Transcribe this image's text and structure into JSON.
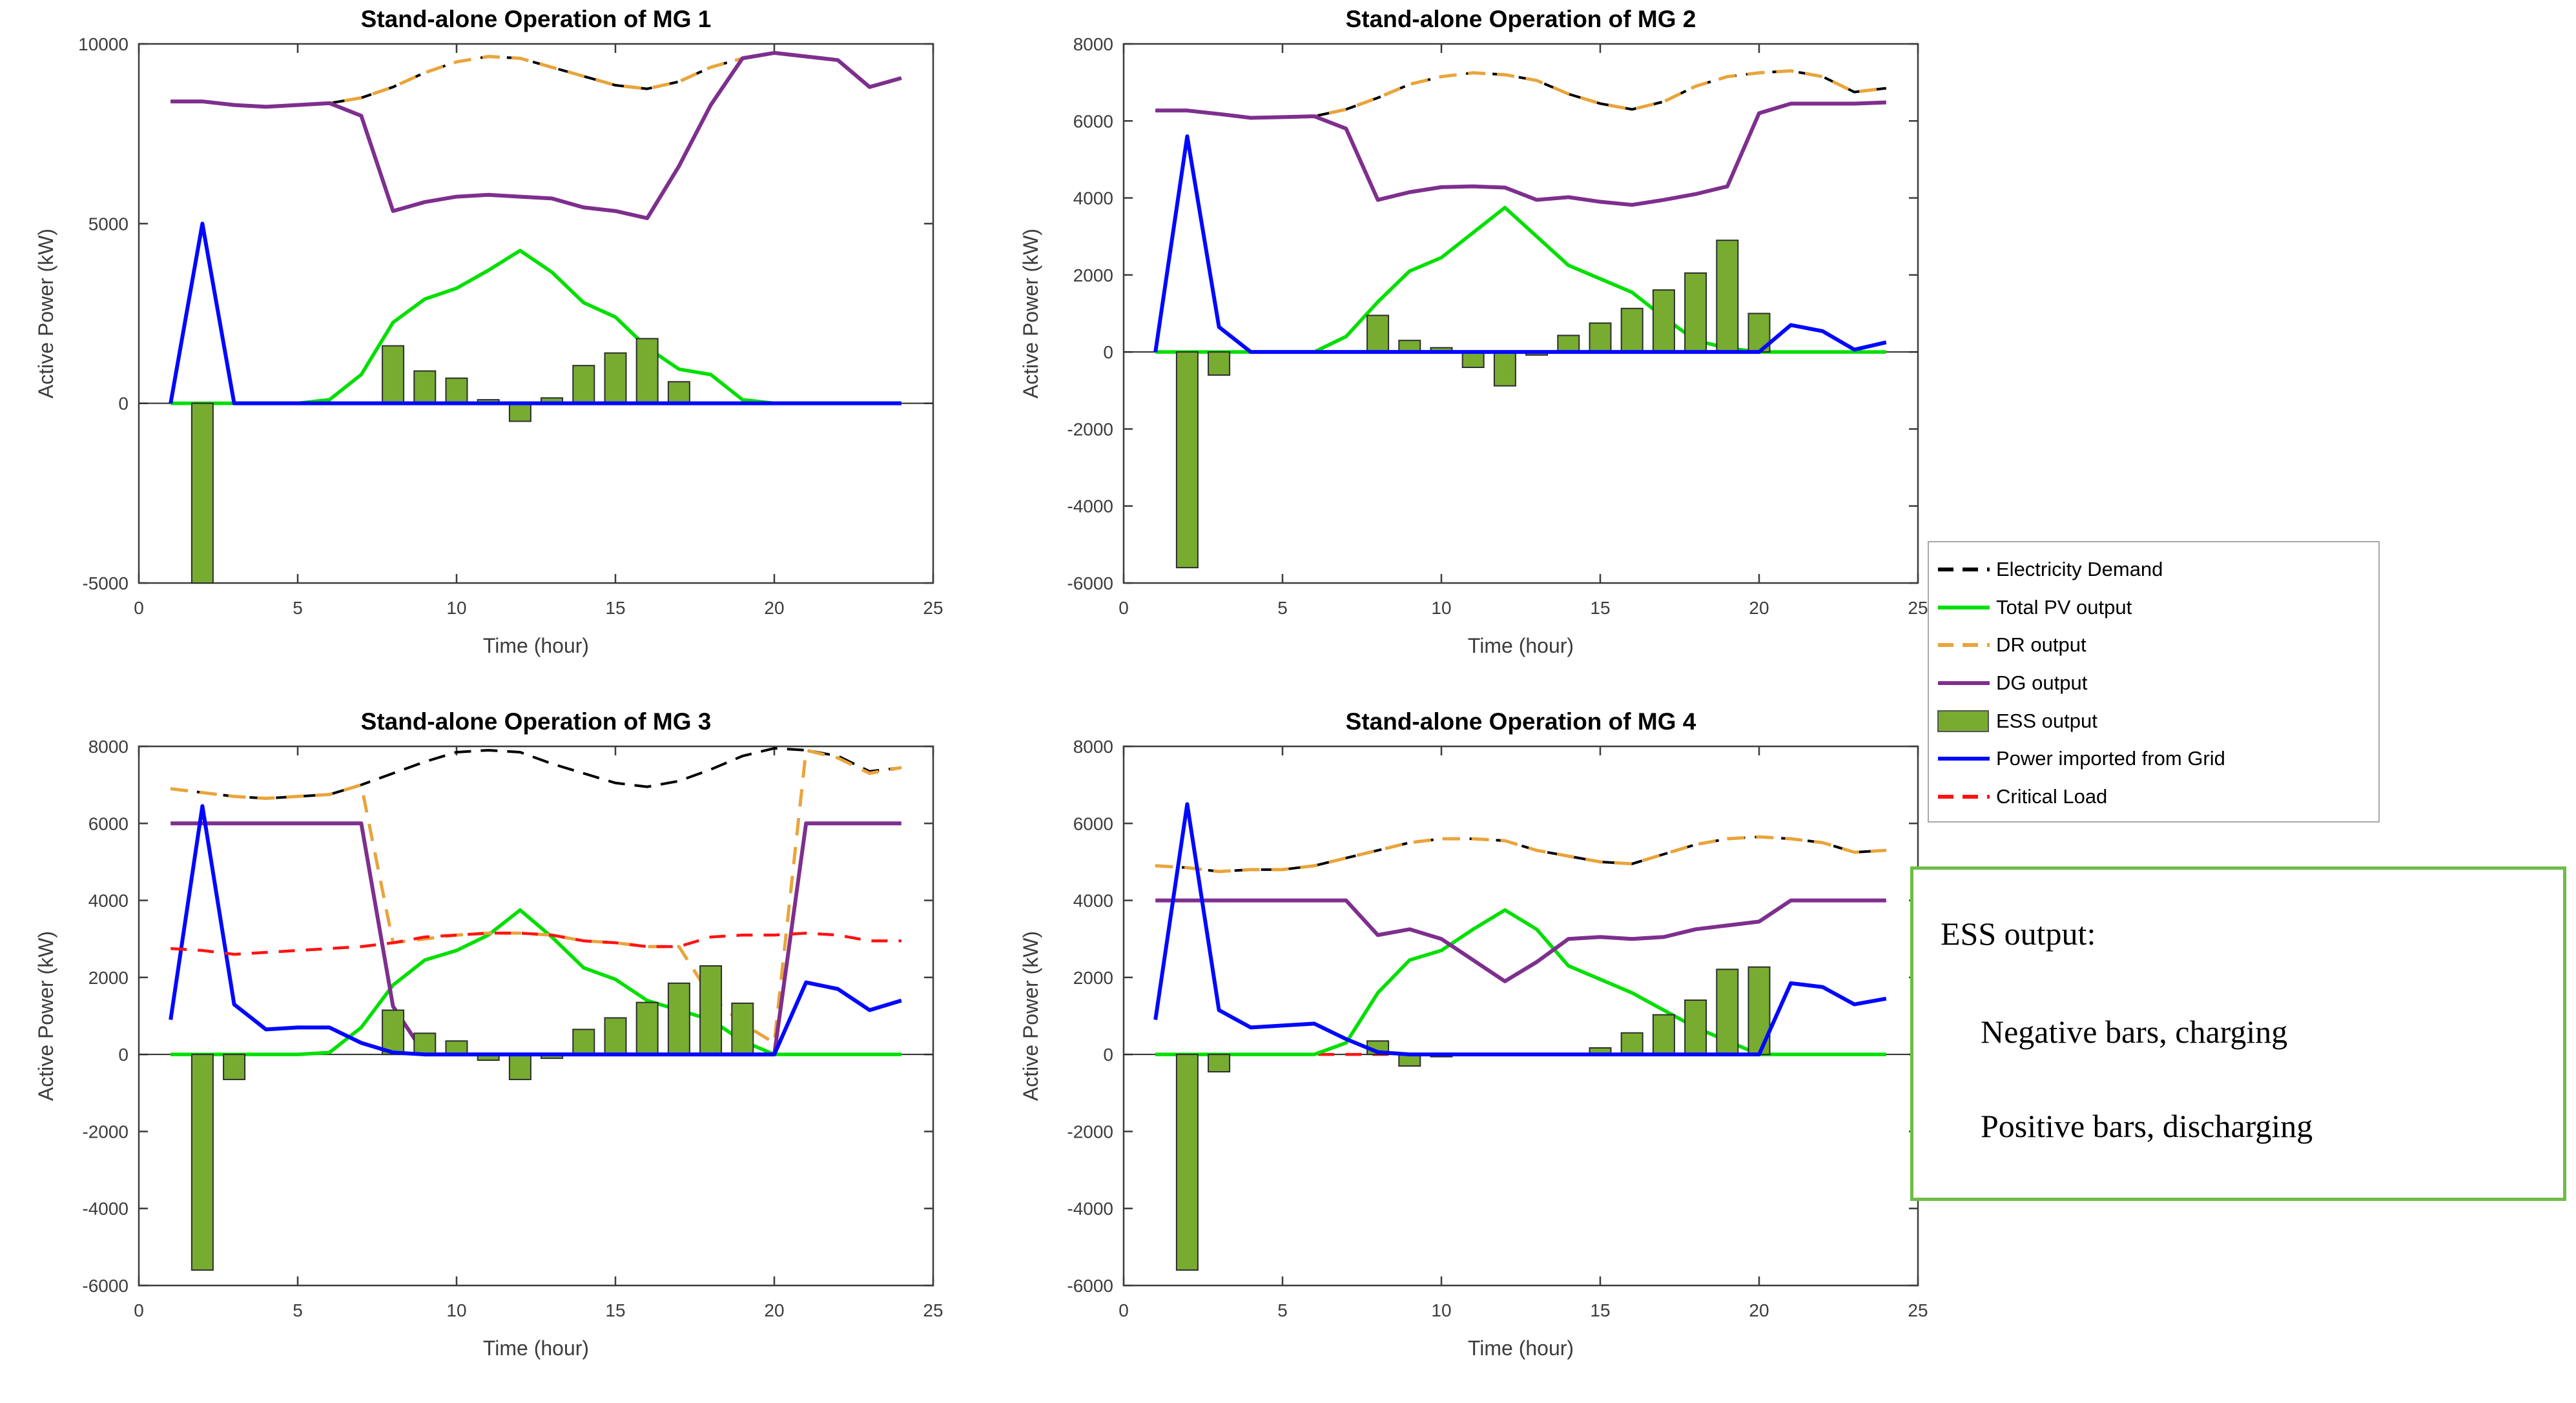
{
  "figure": {
    "background": "#ffffff",
    "axis_color": "#3c3c3c"
  },
  "legend": {
    "items": [
      {
        "label": "Electricity Demand",
        "style": "dash",
        "color": "#000000"
      },
      {
        "label": "Total PV output",
        "style": "solid",
        "color": "#00DF00"
      },
      {
        "label": "DR output",
        "style": "dash",
        "color": "#E9A43B"
      },
      {
        "label": "DG output",
        "style": "solid",
        "color": "#7E2F8E"
      },
      {
        "label": "ESS output",
        "style": "bar",
        "color": "#77AC30"
      },
      {
        "label": "Power imported from Grid",
        "style": "solid",
        "color": "#0008FF"
      },
      {
        "label": "Critical Load",
        "style": "dash",
        "color": "#FF1212"
      }
    ]
  },
  "note_box": {
    "title": "ESS output:",
    "line1": "Negative bars, charging",
    "line2": "Positive bars, discharging",
    "border_color": "#6DBE45"
  },
  "chart_data": [
    {
      "type": "combo-line-bar",
      "title": "Stand-alone Operation of MG 1",
      "xlabel": "Time (hour)",
      "ylabel": "Active Power (kW)",
      "xlim": [
        0,
        25
      ],
      "ylim": [
        -5000,
        10000
      ],
      "xticks": [
        0,
        5,
        10,
        15,
        20,
        25
      ],
      "yticks": [
        -5000,
        0,
        5000,
        10000
      ],
      "grid": false,
      "hours": [
        1,
        2,
        3,
        4,
        5,
        6,
        7,
        8,
        9,
        10,
        11,
        12,
        13,
        14,
        15,
        16,
        17,
        18,
        19,
        20,
        21,
        22,
        23,
        24
      ],
      "series": {
        "demand": [
          8400,
          8400,
          8300,
          8250,
          8300,
          8350,
          8500,
          8800,
          9200,
          9500,
          9650,
          9600,
          9350,
          9100,
          8850,
          8750,
          8950,
          9350,
          9600,
          9750,
          9650,
          9550,
          8800,
          9050
        ],
        "pv": [
          0,
          0,
          0,
          0,
          0,
          100,
          800,
          2250,
          2900,
          3200,
          3700,
          4250,
          3650,
          2800,
          2400,
          1550,
          950,
          800,
          100,
          0,
          0,
          0,
          0,
          0
        ],
        "dr": [
          8400,
          8400,
          8300,
          8250,
          8300,
          8350,
          8500,
          8800,
          9200,
          9500,
          9650,
          9600,
          9350,
          9100,
          8850,
          8750,
          8950,
          9350,
          9600,
          9750,
          9650,
          9550,
          8800,
          9050
        ],
        "dg": [
          8400,
          8400,
          8300,
          8250,
          8300,
          8350,
          8000,
          5350,
          5600,
          5750,
          5800,
          5750,
          5700,
          5450,
          5350,
          5150,
          6600,
          8300,
          9600,
          9750,
          9650,
          9550,
          8800,
          9050
        ],
        "ess": [
          0,
          -5000,
          0,
          0,
          0,
          0,
          0,
          1600,
          900,
          700,
          100,
          -500,
          150,
          1050,
          1400,
          1800,
          600,
          0,
          0,
          0,
          0,
          0,
          0,
          0
        ],
        "grid": [
          0,
          5000,
          0,
          0,
          0,
          0,
          0,
          0,
          0,
          0,
          0,
          0,
          0,
          0,
          0,
          0,
          0,
          0,
          0,
          0,
          0,
          0,
          0,
          0
        ],
        "critical": [
          0,
          0,
          0,
          0,
          0,
          0,
          0,
          0,
          0,
          0,
          0,
          0,
          0,
          0,
          0,
          0,
          0,
          0,
          0,
          0,
          0,
          0,
          0,
          0
        ]
      }
    },
    {
      "type": "combo-line-bar",
      "title": "Stand-alone Operation of MG 2",
      "xlabel": "Time (hour)",
      "ylabel": "Active Power (kW)",
      "xlim": [
        0,
        25
      ],
      "ylim": [
        -6000,
        8000
      ],
      "xticks": [
        0,
        5,
        10,
        15,
        20,
        25
      ],
      "yticks": [
        -6000,
        -4000,
        -2000,
        0,
        2000,
        4000,
        6000,
        8000
      ],
      "grid": false,
      "hours": [
        1,
        2,
        3,
        4,
        5,
        6,
        7,
        8,
        9,
        10,
        11,
        12,
        13,
        14,
        15,
        16,
        17,
        18,
        19,
        20,
        21,
        22,
        23,
        24
      ],
      "series": {
        "demand": [
          6270,
          6270,
          6180,
          6080,
          6100,
          6120,
          6300,
          6600,
          6950,
          7150,
          7250,
          7200,
          7050,
          6700,
          6450,
          6300,
          6500,
          6900,
          7150,
          7250,
          7300,
          7150,
          6750,
          6850
        ],
        "pv": [
          0,
          0,
          0,
          0,
          0,
          0,
          400,
          1300,
          2100,
          2450,
          3100,
          3750,
          3000,
          2250,
          1900,
          1550,
          900,
          300,
          100,
          0,
          0,
          0,
          0,
          0
        ],
        "dr": [
          6270,
          6270,
          6180,
          6080,
          6100,
          6120,
          6300,
          6600,
          6950,
          7150,
          7250,
          7200,
          7050,
          6700,
          6450,
          6300,
          6500,
          6900,
          7150,
          7250,
          7300,
          7150,
          6750,
          6850
        ],
        "dg": [
          6270,
          6270,
          6180,
          6080,
          6100,
          6120,
          5800,
          3950,
          4150,
          4280,
          4300,
          4270,
          3950,
          4020,
          3900,
          3820,
          3950,
          4100,
          4300,
          6200,
          6450,
          6450,
          6450,
          6480
        ],
        "ess": [
          0,
          -5600,
          -600,
          0,
          0,
          0,
          0,
          950,
          300,
          110,
          -400,
          -880,
          -80,
          430,
          750,
          1130,
          1610,
          2050,
          2900,
          1000,
          0,
          0,
          0,
          0
        ],
        "grid": [
          0,
          5600,
          650,
          0,
          0,
          0,
          0,
          0,
          0,
          0,
          0,
          0,
          0,
          0,
          0,
          0,
          0,
          0,
          0,
          0,
          700,
          540,
          60,
          250
        ],
        "critical": [
          0,
          0,
          0,
          0,
          0,
          0,
          0,
          0,
          0,
          0,
          0,
          0,
          0,
          0,
          0,
          0,
          0,
          0,
          0,
          0,
          0,
          0,
          0,
          0
        ]
      }
    },
    {
      "type": "combo-line-bar",
      "title": "Stand-alone Operation of MG 3",
      "xlabel": "Time (hour)",
      "ylabel": "Active Power (kW)",
      "xlim": [
        0,
        25
      ],
      "ylim": [
        -6000,
        8000
      ],
      "xticks": [
        0,
        5,
        10,
        15,
        20,
        25
      ],
      "yticks": [
        -6000,
        -4000,
        -2000,
        0,
        2000,
        4000,
        6000,
        8000
      ],
      "grid": false,
      "hours": [
        1,
        2,
        3,
        4,
        5,
        6,
        7,
        8,
        9,
        10,
        11,
        12,
        13,
        14,
        15,
        16,
        17,
        18,
        19,
        20,
        21,
        22,
        23,
        24
      ],
      "series": {
        "demand": [
          6900,
          6800,
          6700,
          6650,
          6700,
          6750,
          7000,
          7300,
          7600,
          7850,
          7900,
          7850,
          7550,
          7300,
          7050,
          6950,
          7100,
          7400,
          7750,
          7950,
          7900,
          7750,
          7350,
          7450
        ],
        "pv": [
          0,
          0,
          0,
          0,
          0,
          50,
          700,
          1800,
          2450,
          2700,
          3100,
          3750,
          3050,
          2250,
          1950,
          1400,
          1150,
          900,
          350,
          0,
          0,
          0,
          0,
          0
        ],
        "dr": [
          6900,
          6800,
          6700,
          6650,
          6700,
          6750,
          7000,
          2900,
          3000,
          3100,
          3150,
          3150,
          3100,
          2950,
          2900,
          2800,
          2800,
          1500,
          800,
          300,
          7900,
          7700,
          7300,
          7450
        ],
        "dg": [
          6000,
          6000,
          6000,
          6000,
          6000,
          6000,
          6000,
          1250,
          0,
          0,
          0,
          0,
          0,
          0,
          0,
          0,
          0,
          0,
          0,
          0,
          6000,
          6000,
          6000,
          6000
        ],
        "ess": [
          0,
          -5600,
          -650,
          0,
          0,
          0,
          0,
          1150,
          550,
          350,
          -150,
          -650,
          -100,
          650,
          950,
          1350,
          1850,
          2300,
          1330,
          0,
          0,
          0,
          0,
          0
        ],
        "grid": [
          900,
          6450,
          1300,
          650,
          700,
          700,
          300,
          50,
          0,
          0,
          0,
          0,
          0,
          0,
          0,
          0,
          0,
          0,
          0,
          0,
          1870,
          1700,
          1150,
          1400
        ],
        "critical": [
          2750,
          2700,
          2600,
          2650,
          2700,
          2750,
          2800,
          2900,
          3050,
          3100,
          3150,
          3150,
          3100,
          2950,
          2900,
          2800,
          2800,
          3050,
          3100,
          3100,
          3150,
          3100,
          2950,
          2950
        ]
      }
    },
    {
      "type": "combo-line-bar",
      "title": "Stand-alone Operation of MG 4",
      "xlabel": "Time (hour)",
      "ylabel": "Active Power (kW)",
      "xlim": [
        0,
        25
      ],
      "ylim": [
        -6000,
        8000
      ],
      "xticks": [
        0,
        5,
        10,
        15,
        20,
        25
      ],
      "yticks": [
        -6000,
        -4000,
        -2000,
        0,
        2000,
        4000,
        6000,
        8000
      ],
      "grid": false,
      "hours": [
        1,
        2,
        3,
        4,
        5,
        6,
        7,
        8,
        9,
        10,
        11,
        12,
        13,
        14,
        15,
        16,
        17,
        18,
        19,
        20,
        21,
        22,
        23,
        24
      ],
      "series": {
        "demand": [
          4900,
          4850,
          4750,
          4800,
          4800,
          4900,
          5100,
          5300,
          5500,
          5600,
          5600,
          5550,
          5300,
          5150,
          5000,
          4950,
          5200,
          5450,
          5600,
          5650,
          5600,
          5500,
          5250,
          5300
        ],
        "pv": [
          0,
          0,
          0,
          0,
          0,
          0,
          300,
          1600,
          2450,
          2700,
          3250,
          3750,
          3250,
          2300,
          1950,
          1600,
          1150,
          700,
          350,
          0,
          0,
          0,
          0,
          0
        ],
        "dr": [
          4900,
          4850,
          4750,
          4800,
          4800,
          4900,
          5100,
          5300,
          5500,
          5600,
          5600,
          5550,
          5300,
          5150,
          5000,
          4950,
          5200,
          5450,
          5600,
          5650,
          5600,
          5500,
          5250,
          5300
        ],
        "dg": [
          4000,
          4000,
          4000,
          4000,
          4000,
          4000,
          4000,
          3100,
          3250,
          3000,
          2450,
          1900,
          2400,
          3000,
          3050,
          3000,
          3050,
          3250,
          3350,
          3450,
          4000,
          4000,
          4000,
          4000
        ],
        "ess": [
          0,
          -5600,
          -450,
          0,
          0,
          0,
          0,
          350,
          -300,
          -60,
          0,
          0,
          0,
          0,
          170,
          560,
          1030,
          1410,
          2210,
          2270,
          0,
          0,
          0,
          0
        ],
        "grid": [
          900,
          6500,
          1150,
          700,
          750,
          800,
          400,
          60,
          0,
          0,
          0,
          0,
          0,
          0,
          0,
          0,
          0,
          0,
          0,
          0,
          1850,
          1750,
          1300,
          1450
        ],
        "critical": [
          0,
          0,
          0,
          0,
          0,
          0,
          0,
          0,
          0,
          0,
          0,
          0,
          0,
          0,
          0,
          0,
          0,
          0,
          0,
          0,
          0,
          0,
          0,
          0
        ]
      }
    }
  ]
}
